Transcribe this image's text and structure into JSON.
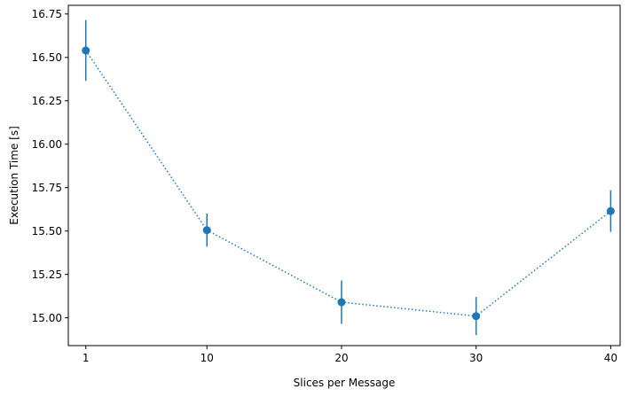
{
  "chart_data": {
    "type": "line",
    "title": "",
    "xlabel": "Slices per Message",
    "ylabel": "Execution Time [s]",
    "xlim": [
      -0.3,
      40.7
    ],
    "ylim": [
      14.84,
      16.8
    ],
    "x_ticks": [
      1,
      10,
      20,
      30,
      40
    ],
    "x_tick_labels": [
      "1",
      "10",
      "20",
      "30",
      "40"
    ],
    "y_ticks": [
      15.0,
      15.25,
      15.5,
      15.75,
      16.0,
      16.25,
      16.5,
      16.75
    ],
    "y_tick_labels": [
      "15.00",
      "15.25",
      "15.50",
      "15.75",
      "16.00",
      "16.25",
      "16.50",
      "16.75"
    ],
    "grid": false,
    "series": [
      {
        "x": [
          1,
          10,
          20,
          30,
          40
        ],
        "y": [
          16.54,
          15.505,
          15.09,
          15.01,
          15.615
        ],
        "error": [
          0.175,
          0.095,
          0.125,
          0.11,
          0.12
        ],
        "line_style": "dotted",
        "marker": "circle",
        "color": "#1f77b4"
      }
    ]
  }
}
